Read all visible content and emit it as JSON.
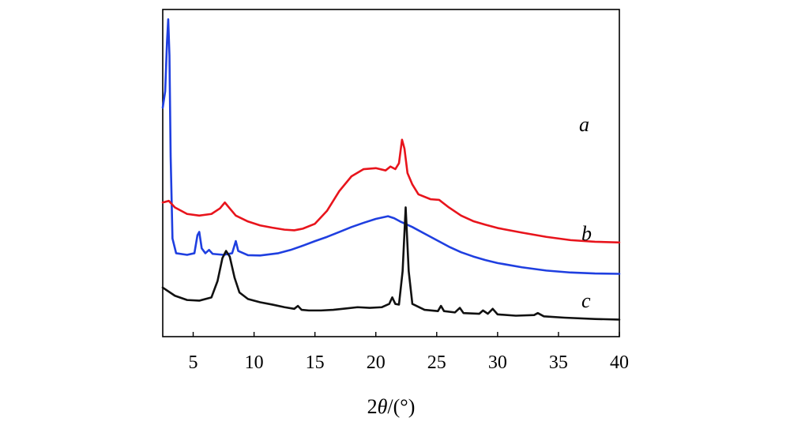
{
  "chart_data": {
    "type": "line",
    "xlabel_prefix": "2",
    "xlabel_symbol": "θ",
    "xlabel_suffix": "/(°)",
    "xlim": [
      2.5,
      40
    ],
    "xticks": [
      5,
      10,
      15,
      20,
      25,
      30,
      35,
      40
    ],
    "y_ticks_shown": false,
    "grid": false,
    "legend": "inline-right",
    "series": [
      {
        "name": "a",
        "color": "#1f3fe0",
        "points": [
          [
            2.5,
            0.7
          ],
          [
            2.7,
            0.75
          ],
          [
            2.85,
            0.9
          ],
          [
            2.95,
            0.97
          ],
          [
            3.05,
            0.86
          ],
          [
            3.15,
            0.55
          ],
          [
            3.3,
            0.3
          ],
          [
            3.6,
            0.255
          ],
          [
            4.5,
            0.25
          ],
          [
            5.1,
            0.255
          ],
          [
            5.35,
            0.31
          ],
          [
            5.5,
            0.32
          ],
          [
            5.7,
            0.27
          ],
          [
            6.0,
            0.255
          ],
          [
            6.3,
            0.265
          ],
          [
            6.6,
            0.253
          ],
          [
            7.5,
            0.25
          ],
          [
            8.2,
            0.255
          ],
          [
            8.5,
            0.292
          ],
          [
            8.7,
            0.262
          ],
          [
            9.5,
            0.249
          ],
          [
            10.5,
            0.248
          ],
          [
            12.0,
            0.255
          ],
          [
            13.0,
            0.265
          ],
          [
            14.0,
            0.278
          ],
          [
            15.0,
            0.292
          ],
          [
            16.0,
            0.305
          ],
          [
            17.0,
            0.32
          ],
          [
            18.0,
            0.335
          ],
          [
            19.0,
            0.348
          ],
          [
            20.0,
            0.36
          ],
          [
            21.0,
            0.368
          ],
          [
            21.5,
            0.362
          ],
          [
            22.0,
            0.352
          ],
          [
            23.0,
            0.335
          ],
          [
            24.0,
            0.315
          ],
          [
            25.0,
            0.295
          ],
          [
            26.0,
            0.275
          ],
          [
            27.0,
            0.258
          ],
          [
            28.0,
            0.245
          ],
          [
            29.0,
            0.234
          ],
          [
            30.0,
            0.225
          ],
          [
            32.0,
            0.212
          ],
          [
            34.0,
            0.202
          ],
          [
            36.0,
            0.196
          ],
          [
            38.0,
            0.193
          ],
          [
            40.0,
            0.192
          ]
        ]
      },
      {
        "name": "b",
        "color": "#e8141c",
        "points": [
          [
            2.5,
            0.41
          ],
          [
            3.0,
            0.415
          ],
          [
            3.5,
            0.395
          ],
          [
            4.5,
            0.375
          ],
          [
            5.5,
            0.37
          ],
          [
            6.5,
            0.375
          ],
          [
            7.2,
            0.392
          ],
          [
            7.6,
            0.41
          ],
          [
            8.0,
            0.392
          ],
          [
            8.5,
            0.37
          ],
          [
            9.5,
            0.352
          ],
          [
            10.5,
            0.34
          ],
          [
            11.5,
            0.333
          ],
          [
            12.5,
            0.327
          ],
          [
            13.3,
            0.325
          ],
          [
            14.0,
            0.33
          ],
          [
            15.0,
            0.345
          ],
          [
            16.0,
            0.385
          ],
          [
            17.0,
            0.445
          ],
          [
            18.0,
            0.49
          ],
          [
            19.0,
            0.512
          ],
          [
            20.0,
            0.515
          ],
          [
            20.8,
            0.508
          ],
          [
            21.2,
            0.52
          ],
          [
            21.6,
            0.512
          ],
          [
            21.9,
            0.53
          ],
          [
            22.15,
            0.602
          ],
          [
            22.35,
            0.575
          ],
          [
            22.6,
            0.5
          ],
          [
            23.0,
            0.465
          ],
          [
            23.5,
            0.435
          ],
          [
            24.5,
            0.42
          ],
          [
            25.2,
            0.418
          ],
          [
            26.0,
            0.395
          ],
          [
            27.0,
            0.37
          ],
          [
            28.0,
            0.353
          ],
          [
            29.0,
            0.342
          ],
          [
            30.0,
            0.332
          ],
          [
            32.0,
            0.318
          ],
          [
            34.0,
            0.305
          ],
          [
            36.0,
            0.295
          ],
          [
            38.0,
            0.29
          ],
          [
            40.0,
            0.288
          ]
        ]
      },
      {
        "name": "c",
        "color": "#111111",
        "points": [
          [
            2.5,
            0.15
          ],
          [
            3.5,
            0.125
          ],
          [
            4.5,
            0.112
          ],
          [
            5.5,
            0.11
          ],
          [
            6.5,
            0.12
          ],
          [
            7.0,
            0.17
          ],
          [
            7.4,
            0.24
          ],
          [
            7.7,
            0.262
          ],
          [
            8.0,
            0.245
          ],
          [
            8.4,
            0.18
          ],
          [
            8.8,
            0.135
          ],
          [
            9.5,
            0.115
          ],
          [
            10.5,
            0.105
          ],
          [
            11.5,
            0.098
          ],
          [
            12.5,
            0.09
          ],
          [
            13.3,
            0.085
          ],
          [
            13.6,
            0.094
          ],
          [
            13.9,
            0.082
          ],
          [
            14.5,
            0.08
          ],
          [
            15.5,
            0.08
          ],
          [
            16.5,
            0.082
          ],
          [
            17.5,
            0.086
          ],
          [
            18.5,
            0.09
          ],
          [
            19.5,
            0.088
          ],
          [
            20.5,
            0.09
          ],
          [
            21.1,
            0.1
          ],
          [
            21.35,
            0.12
          ],
          [
            21.6,
            0.1
          ],
          [
            21.9,
            0.098
          ],
          [
            22.2,
            0.2
          ],
          [
            22.45,
            0.395
          ],
          [
            22.7,
            0.2
          ],
          [
            23.0,
            0.1
          ],
          [
            24.0,
            0.082
          ],
          [
            25.1,
            0.078
          ],
          [
            25.35,
            0.094
          ],
          [
            25.6,
            0.078
          ],
          [
            26.5,
            0.074
          ],
          [
            26.9,
            0.088
          ],
          [
            27.2,
            0.072
          ],
          [
            28.5,
            0.07
          ],
          [
            28.8,
            0.08
          ],
          [
            29.2,
            0.07
          ],
          [
            29.6,
            0.085
          ],
          [
            30.0,
            0.068
          ],
          [
            31.5,
            0.064
          ],
          [
            33.0,
            0.066
          ],
          [
            33.3,
            0.072
          ],
          [
            33.8,
            0.062
          ],
          [
            35.5,
            0.058
          ],
          [
            38.0,
            0.054
          ],
          [
            40.0,
            0.052
          ]
        ]
      }
    ]
  }
}
